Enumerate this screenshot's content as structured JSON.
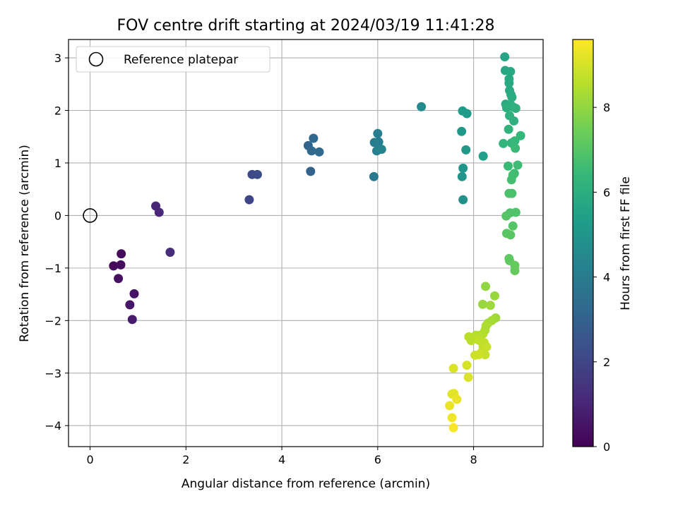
{
  "chart_data": {
    "type": "scatter",
    "title": "FOV centre drift starting at 2024/03/19 11:41:28",
    "xlabel": "Angular distance from reference (arcmin)",
    "ylabel": "Rotation from reference (arcmin)",
    "xlim": [
      -0.45,
      9.45
    ],
    "ylim": [
      -4.4,
      3.35
    ],
    "xticks": [
      0,
      2,
      4,
      6,
      8
    ],
    "yticks": [
      -4,
      -3,
      -2,
      -1,
      0,
      1,
      2,
      3
    ],
    "grid": true,
    "legend": {
      "position": "upper-left",
      "entries": [
        "Reference platepar"
      ]
    },
    "reference_point": {
      "x": 0,
      "y": 0
    },
    "colorbar": {
      "label": "Hours from first FF file",
      "colormap": "viridis",
      "range": [
        0,
        9.6
      ],
      "ticks": [
        0,
        2,
        4,
        6,
        8
      ]
    },
    "colormap_stops": [
      "#440154",
      "#482878",
      "#3e4a89",
      "#31688e",
      "#26828e",
      "#1f9e89",
      "#35b779",
      "#6ece58",
      "#b5de2b",
      "#fde725"
    ],
    "points": [
      {
        "x": 0.49,
        "y": -0.96,
        "h": 0.2
      },
      {
        "x": 0.65,
        "y": -0.73,
        "h": 0.3
      },
      {
        "x": 0.64,
        "y": -0.94,
        "h": 0.3
      },
      {
        "x": 0.59,
        "y": -1.2,
        "h": 0.4
      },
      {
        "x": 0.92,
        "y": -1.49,
        "h": 0.5
      },
      {
        "x": 0.83,
        "y": -1.7,
        "h": 0.6
      },
      {
        "x": 0.88,
        "y": -1.98,
        "h": 0.7
      },
      {
        "x": 1.37,
        "y": 0.18,
        "h": 1.0
      },
      {
        "x": 1.44,
        "y": 0.06,
        "h": 1.1
      },
      {
        "x": 1.67,
        "y": -0.7,
        "h": 1.2
      },
      {
        "x": 3.32,
        "y": 0.3,
        "h": 2.0
      },
      {
        "x": 3.38,
        "y": 0.78,
        "h": 2.1
      },
      {
        "x": 3.49,
        "y": 0.78,
        "h": 2.2
      },
      {
        "x": 4.6,
        "y": 0.84,
        "h": 3.0
      },
      {
        "x": 4.55,
        "y": 1.33,
        "h": 3.1
      },
      {
        "x": 4.62,
        "y": 1.23,
        "h": 3.2
      },
      {
        "x": 4.66,
        "y": 1.47,
        "h": 3.2
      },
      {
        "x": 4.78,
        "y": 1.21,
        "h": 3.3
      },
      {
        "x": 5.92,
        "y": 0.74,
        "h": 3.9
      },
      {
        "x": 5.93,
        "y": 1.39,
        "h": 4.0
      },
      {
        "x": 6.0,
        "y": 1.56,
        "h": 4.1
      },
      {
        "x": 6.02,
        "y": 1.4,
        "h": 4.1
      },
      {
        "x": 5.98,
        "y": 1.23,
        "h": 4.2
      },
      {
        "x": 6.08,
        "y": 1.26,
        "h": 4.3
      },
      {
        "x": 6.91,
        "y": 2.07,
        "h": 4.6
      },
      {
        "x": 7.78,
        "y": 0.3,
        "h": 4.9
      },
      {
        "x": 7.76,
        "y": 0.74,
        "h": 5.0
      },
      {
        "x": 7.78,
        "y": 0.9,
        "h": 5.0
      },
      {
        "x": 7.84,
        "y": 1.25,
        "h": 5.1
      },
      {
        "x": 7.75,
        "y": 1.6,
        "h": 5.1
      },
      {
        "x": 7.77,
        "y": 1.99,
        "h": 5.2
      },
      {
        "x": 7.86,
        "y": 1.94,
        "h": 5.2
      },
      {
        "x": 8.2,
        "y": 1.13,
        "h": 5.4
      },
      {
        "x": 8.65,
        "y": 3.02,
        "h": 5.6
      },
      {
        "x": 8.66,
        "y": 2.76,
        "h": 5.7
      },
      {
        "x": 8.77,
        "y": 2.74,
        "h": 5.7
      },
      {
        "x": 8.74,
        "y": 2.6,
        "h": 5.8
      },
      {
        "x": 8.74,
        "y": 2.52,
        "h": 5.8
      },
      {
        "x": 8.75,
        "y": 2.38,
        "h": 5.8
      },
      {
        "x": 8.78,
        "y": 2.3,
        "h": 5.9
      },
      {
        "x": 8.8,
        "y": 2.25,
        "h": 5.9
      },
      {
        "x": 8.67,
        "y": 2.12,
        "h": 5.9
      },
      {
        "x": 8.69,
        "y": 2.05,
        "h": 6.0
      },
      {
        "x": 8.78,
        "y": 2.1,
        "h": 6.0
      },
      {
        "x": 8.83,
        "y": 2.06,
        "h": 6.0
      },
      {
        "x": 8.88,
        "y": 2.04,
        "h": 6.1
      },
      {
        "x": 8.75,
        "y": 1.9,
        "h": 6.1
      },
      {
        "x": 8.84,
        "y": 1.8,
        "h": 6.1
      },
      {
        "x": 8.73,
        "y": 1.64,
        "h": 6.2
      },
      {
        "x": 8.62,
        "y": 1.37,
        "h": 6.3
      },
      {
        "x": 8.79,
        "y": 1.38,
        "h": 6.3
      },
      {
        "x": 8.86,
        "y": 1.42,
        "h": 6.4
      },
      {
        "x": 8.98,
        "y": 1.52,
        "h": 6.4
      },
      {
        "x": 8.87,
        "y": 1.28,
        "h": 6.5
      },
      {
        "x": 8.72,
        "y": 0.94,
        "h": 6.5
      },
      {
        "x": 8.92,
        "y": 0.96,
        "h": 6.6
      },
      {
        "x": 8.85,
        "y": 0.8,
        "h": 6.6
      },
      {
        "x": 8.82,
        "y": 0.77,
        "h": 6.7
      },
      {
        "x": 8.79,
        "y": 0.68,
        "h": 6.7
      },
      {
        "x": 8.74,
        "y": 0.42,
        "h": 6.8
      },
      {
        "x": 8.8,
        "y": 0.42,
        "h": 6.8
      },
      {
        "x": 8.76,
        "y": 0.05,
        "h": 6.9
      },
      {
        "x": 8.88,
        "y": 0.06,
        "h": 6.9
      },
      {
        "x": 8.68,
        "y": -0.01,
        "h": 7.0
      },
      {
        "x": 8.82,
        "y": -0.2,
        "h": 7.0
      },
      {
        "x": 8.69,
        "y": -0.34,
        "h": 7.1
      },
      {
        "x": 8.77,
        "y": -0.37,
        "h": 7.1
      },
      {
        "x": 8.74,
        "y": -0.82,
        "h": 7.2
      },
      {
        "x": 8.75,
        "y": -0.86,
        "h": 7.2
      },
      {
        "x": 8.86,
        "y": -0.95,
        "h": 7.3
      },
      {
        "x": 8.86,
        "y": -1.05,
        "h": 7.3
      },
      {
        "x": 8.25,
        "y": -1.35,
        "h": 8.0
      },
      {
        "x": 8.44,
        "y": -1.53,
        "h": 8.1
      },
      {
        "x": 8.19,
        "y": -1.69,
        "h": 8.1
      },
      {
        "x": 8.35,
        "y": -1.71,
        "h": 8.2
      },
      {
        "x": 8.46,
        "y": -1.95,
        "h": 8.2
      },
      {
        "x": 8.38,
        "y": -2.0,
        "h": 8.3
      },
      {
        "x": 8.3,
        "y": -2.05,
        "h": 8.3
      },
      {
        "x": 8.26,
        "y": -2.1,
        "h": 8.4
      },
      {
        "x": 8.24,
        "y": -2.18,
        "h": 8.4
      },
      {
        "x": 8.2,
        "y": -2.25,
        "h": 8.5
      },
      {
        "x": 8.14,
        "y": -2.28,
        "h": 8.5
      },
      {
        "x": 8.05,
        "y": -2.28,
        "h": 8.5
      },
      {
        "x": 7.9,
        "y": -2.31,
        "h": 8.6
      },
      {
        "x": 7.95,
        "y": -2.38,
        "h": 8.6
      },
      {
        "x": 8.03,
        "y": -2.35,
        "h": 8.6
      },
      {
        "x": 8.12,
        "y": -2.38,
        "h": 8.7
      },
      {
        "x": 8.22,
        "y": -2.42,
        "h": 8.7
      },
      {
        "x": 8.2,
        "y": -2.5,
        "h": 8.7
      },
      {
        "x": 8.27,
        "y": -2.5,
        "h": 8.8
      },
      {
        "x": 8.17,
        "y": -2.6,
        "h": 8.8
      },
      {
        "x": 8.24,
        "y": -2.65,
        "h": 8.8
      },
      {
        "x": 8.11,
        "y": -2.65,
        "h": 8.9
      },
      {
        "x": 8.03,
        "y": -2.66,
        "h": 8.9
      },
      {
        "x": 7.86,
        "y": -2.85,
        "h": 9.0
      },
      {
        "x": 7.58,
        "y": -2.91,
        "h": 9.1
      },
      {
        "x": 7.89,
        "y": -3.08,
        "h": 9.1
      },
      {
        "x": 7.55,
        "y": -3.4,
        "h": 9.2
      },
      {
        "x": 7.59,
        "y": -3.39,
        "h": 9.2
      },
      {
        "x": 7.65,
        "y": -3.5,
        "h": 9.3
      },
      {
        "x": 7.5,
        "y": -3.62,
        "h": 9.3
      },
      {
        "x": 7.55,
        "y": -3.85,
        "h": 9.4
      },
      {
        "x": 7.58,
        "y": -4.04,
        "h": 9.5
      }
    ]
  }
}
